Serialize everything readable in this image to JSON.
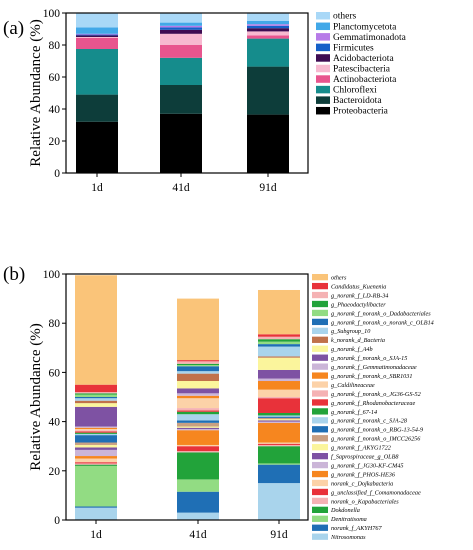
{
  "chart_data": [
    {
      "type": "bar",
      "stacked": true,
      "panel_label": "(a)",
      "ylabel": "Relative Abundance (%)",
      "ylim": [
        0,
        100
      ],
      "yticks": [
        0,
        20,
        40,
        60,
        80,
        100
      ],
      "categories": [
        "1d",
        "41d",
        "91d"
      ],
      "legend_position": "right",
      "series": [
        {
          "name": "Proteobacteria",
          "color": "#000000",
          "values": [
            32,
            37,
            36.5
          ]
        },
        {
          "name": "Bacteroidota",
          "color": "#0d3d3a",
          "values": [
            17,
            18,
            30
          ]
        },
        {
          "name": "Chloroflexi",
          "color": "#158c8c",
          "values": [
            28.5,
            17,
            17.5
          ]
        },
        {
          "name": "Actinobacteriota",
          "color": "#e8558e",
          "values": [
            7,
            8,
            2
          ]
        },
        {
          "name": "Patescibacteria",
          "color": "#f7b9d0",
          "values": [
            0.5,
            7,
            2.5
          ]
        },
        {
          "name": "Acidobacteriota",
          "color": "#3e0c52",
          "values": [
            1,
            2.5,
            2
          ]
        },
        {
          "name": "Firmicutes",
          "color": "#1560c8",
          "values": [
            0.5,
            1.5,
            1.5
          ]
        },
        {
          "name": "Gemmatimonadota",
          "color": "#b77be8",
          "values": [
            0.5,
            1,
            1
          ]
        },
        {
          "name": "Planctomycetota",
          "color": "#42a8e8",
          "values": [
            4,
            2,
            2
          ]
        },
        {
          "name": "others",
          "color": "#a9d8f7",
          "values": [
            9,
            6,
            5
          ]
        }
      ]
    },
    {
      "type": "bar",
      "stacked": true,
      "panel_label": "(b)",
      "ylabel": "Relative Abundance (%)",
      "ylim": [
        0,
        100
      ],
      "yticks": [
        0,
        20,
        40,
        60,
        80,
        100
      ],
      "categories": [
        "1d",
        "41d",
        "91d"
      ],
      "legend_position": "right",
      "series": [
        {
          "name": "Nitrosomonas",
          "color": "#a9d4ec",
          "values": [
            5,
            3,
            15
          ]
        },
        {
          "name": "norank_f_AKYH767",
          "color": "#1f6fb5",
          "values": [
            0.5,
            8.5,
            7.5
          ]
        },
        {
          "name": "Denitratisoma",
          "color": "#92dc83",
          "values": [
            16.5,
            5,
            0.5
          ]
        },
        {
          "name": "Dokdonella",
          "color": "#22a33a",
          "values": [
            0.5,
            11,
            7
          ]
        },
        {
          "name": "norank_o_Kapabacteriales",
          "color": "#f5b2b4",
          "values": [
            0.5,
            0.5,
            0.5
          ]
        },
        {
          "name": "g_unclassified_f_Comamonadaceae",
          "color": "#e8323a",
          "values": [
            0.5,
            2,
            0.5
          ]
        },
        {
          "name": "norank_c_Dojkabacteria",
          "color": "#fcd2a8",
          "values": [
            1.5,
            0.5,
            0.5
          ]
        },
        {
          "name": "g_norank_f_PHOS-HE36",
          "color": "#f6861f",
          "values": [
            1,
            6,
            8
          ]
        },
        {
          "name": "g_norank_f_JG30-KF-CM45",
          "color": "#cbb5d8",
          "values": [
            2.5,
            0.5,
            0.5
          ]
        },
        {
          "name": "f_Saprospiraceae_g_OLB8",
          "color": "#7e52a3",
          "values": [
            1,
            0.5,
            0.5
          ]
        },
        {
          "name": "g_norank_f_AKYG1722",
          "color": "#fbf59c",
          "values": [
            1,
            0.5,
            0.5
          ]
        },
        {
          "name": "g_norank_f_norank_o_IMCC26256",
          "color": "#c9a083",
          "values": [
            1,
            1.5,
            0.5
          ]
        },
        {
          "name": "g_norank_f_norank_o_RBG-13-54-9",
          "color": "#1f6fb5",
          "values": [
            3,
            1,
            0.5
          ]
        },
        {
          "name": "g_norank_f_norank_c_SJA-28",
          "color": "#a9d4ec",
          "values": [
            0.5,
            2.5,
            0.5
          ]
        },
        {
          "name": "g_norank_f_67-14",
          "color": "#22a33a",
          "values": [
            0.5,
            1,
            1
          ]
        },
        {
          "name": "g_norank_f_Rhodanobacteraceae",
          "color": "#e8323a",
          "values": [
            0.5,
            0.5,
            6
          ]
        },
        {
          "name": "g_norank_f_norank_o_JG36-GS-52",
          "color": "#f5b2b4",
          "values": [
            0.5,
            1,
            0.5
          ]
        },
        {
          "name": "g_Caldilineaceae",
          "color": "#fcd2a8",
          "values": [
            0.5,
            4,
            3
          ]
        },
        {
          "name": "g_norank_f_norank_o_SBR1031",
          "color": "#f6861f",
          "values": [
            0.5,
            1,
            3.5
          ]
        },
        {
          "name": "g_norank_f_Gemmatimonadaceae",
          "color": "#cbb5d8",
          "values": [
            0.5,
            1,
            1
          ]
        },
        {
          "name": "g_norank_f_norank_o_SJA-15",
          "color": "#7e52a3",
          "values": [
            8,
            2,
            3.5
          ]
        },
        {
          "name": "g_norank_f_A4b",
          "color": "#fbf59c",
          "values": [
            1.5,
            3,
            5
          ]
        },
        {
          "name": "k_norank_d_Bacteria",
          "color": "#c0714a",
          "values": [
            1,
            3,
            0.5
          ]
        },
        {
          "name": "g_Subgroup_10",
          "color": "#a9d4ec",
          "values": [
            1,
            1,
            4
          ]
        },
        {
          "name": "g_norank_f_norank_o_norank_c_OLB14",
          "color": "#1f6fb5",
          "values": [
            0.5,
            2,
            1
          ]
        },
        {
          "name": "g_norank_f_norank_o_Dadabacteriales",
          "color": "#92dc83",
          "values": [
            1,
            0.5,
            1
          ]
        },
        {
          "name": "g_Phaeodactylibacter",
          "color": "#22a33a",
          "values": [
            0.5,
            0.5,
            1
          ]
        },
        {
          "name": "g_norank_f_LD-RB-34",
          "color": "#f5b2b4",
          "values": [
            0.5,
            1,
            1
          ]
        },
        {
          "name": "Candidatus_Kuenenia",
          "color": "#e8323a",
          "values": [
            3,
            0.5,
            1
          ]
        },
        {
          "name": "others",
          "color": "#fac479",
          "values": [
            44.5,
            25,
            18
          ]
        }
      ]
    }
  ]
}
